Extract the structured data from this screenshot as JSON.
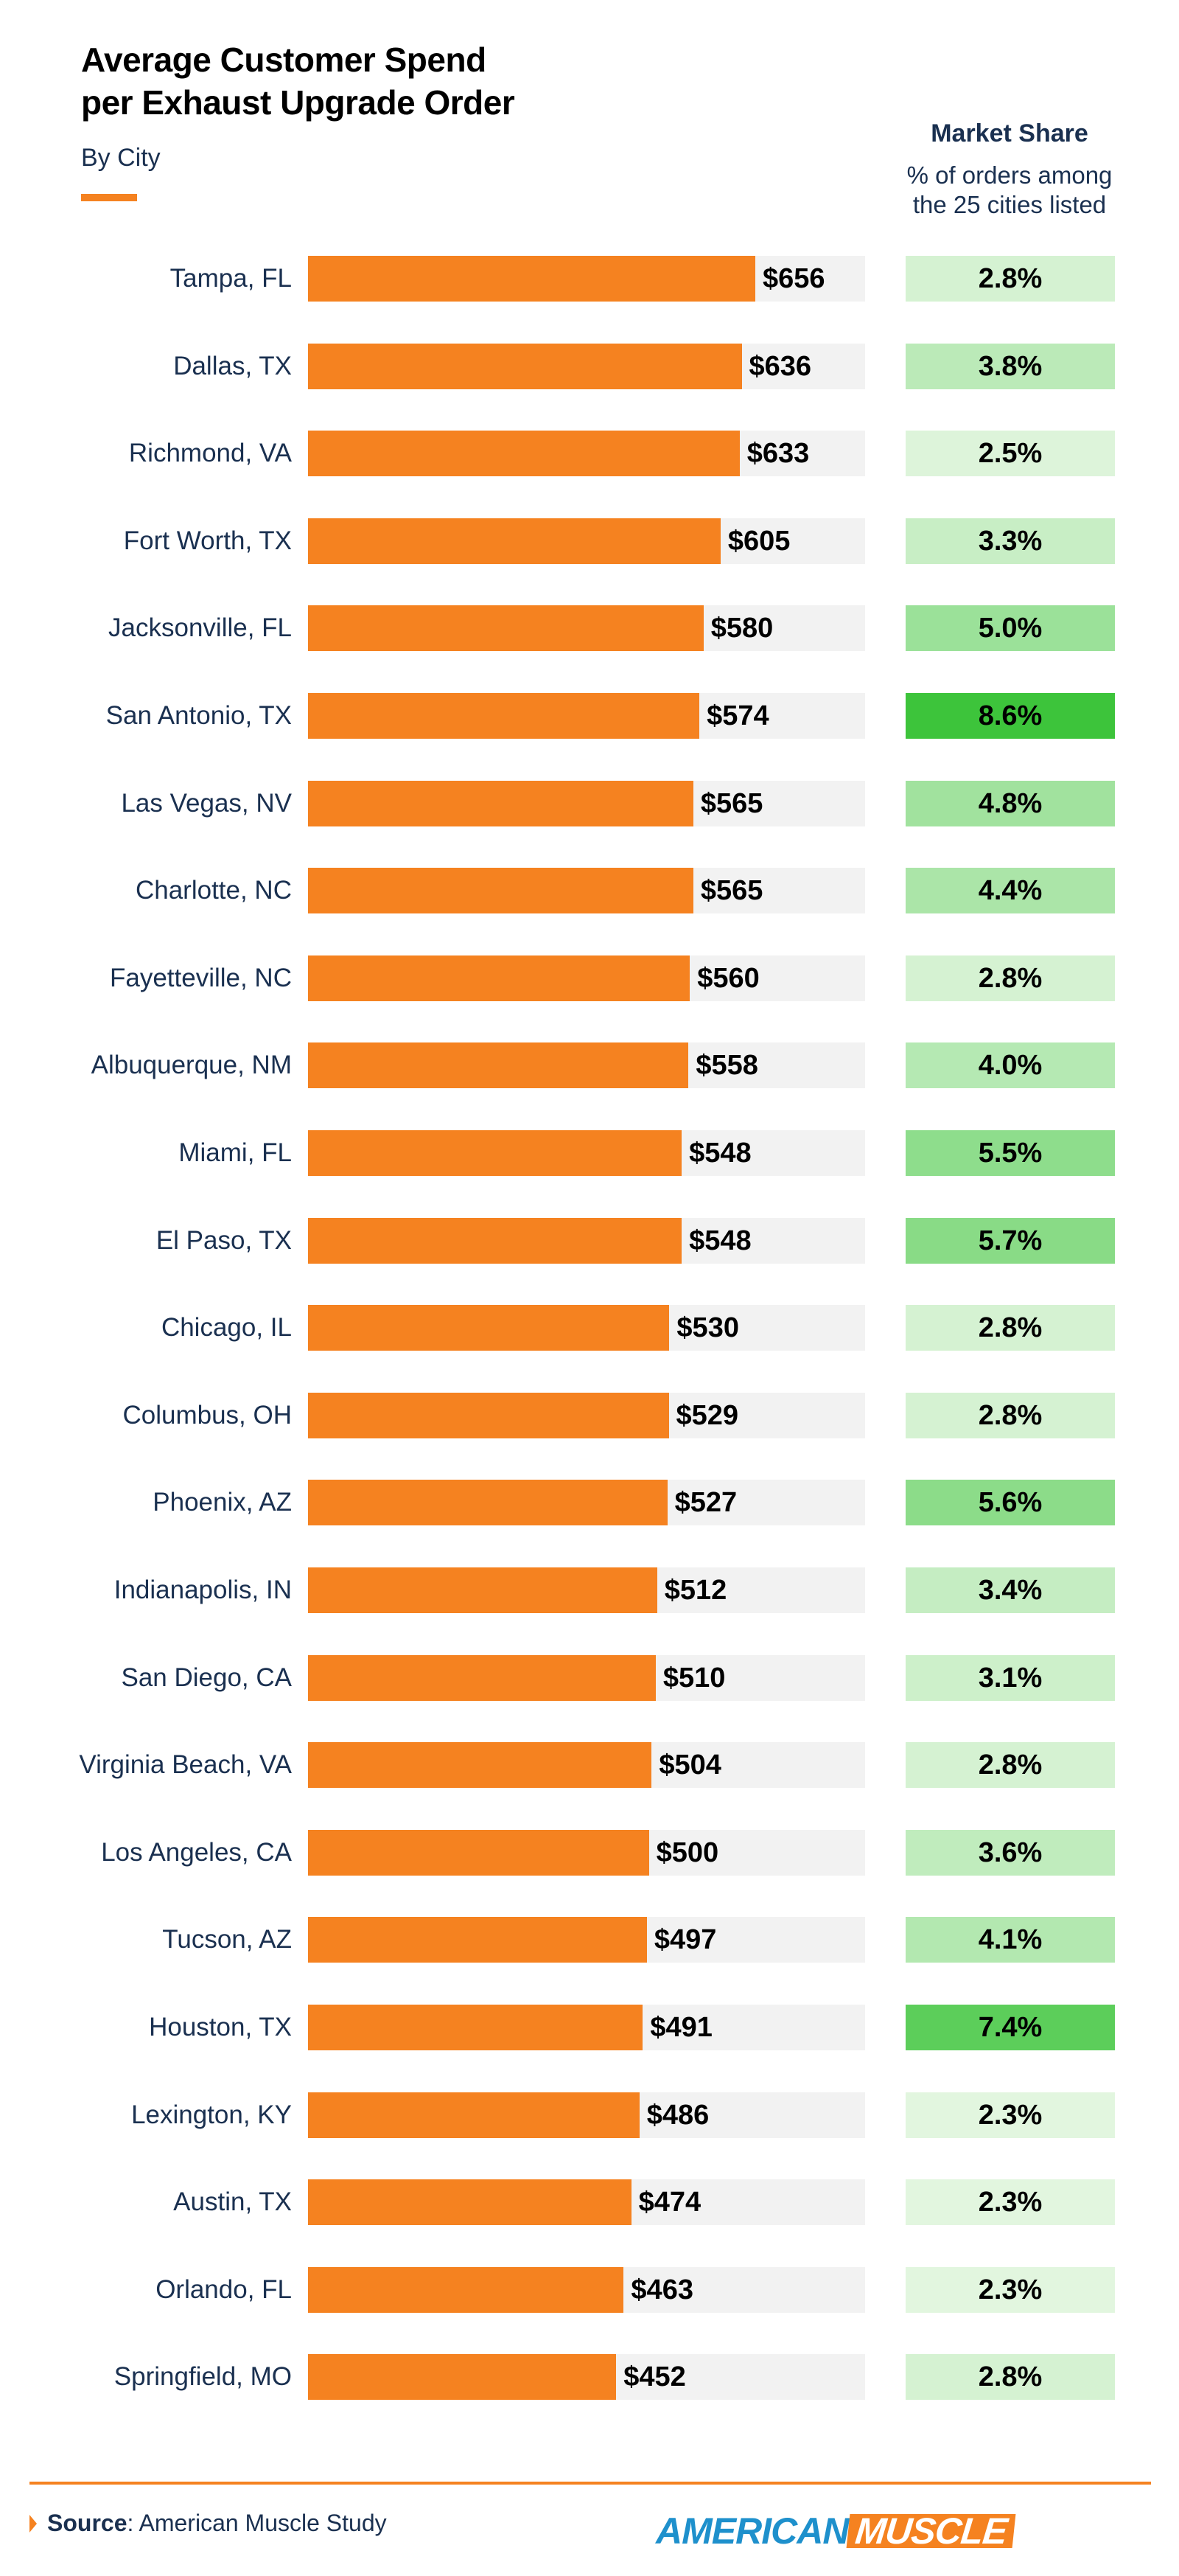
{
  "title_line1": "Average Customer Spend",
  "title_line2": "per Exhaust Upgrade Order",
  "subtitle": "By City",
  "market_share_header": {
    "title": "Market Share",
    "line1": "% of orders among",
    "line2": "the 25 cities listed"
  },
  "colors": {
    "bar": "#f58220",
    "track": "#f2f2f2",
    "share_low": "#e2f6df",
    "share_high": "#3dc43b"
  },
  "chart_data": {
    "type": "bar",
    "orientation": "horizontal",
    "categories": [
      "Tampa, FL",
      "Dallas, TX",
      "Richmond, VA",
      "Fort Worth, TX",
      "Jacksonville, FL",
      "San Antonio, TX",
      "Las Vegas, NV",
      "Charlotte, NC",
      "Fayetteville, NC",
      "Albuquerque, NM",
      "Miami, FL",
      "El Paso, TX",
      "Chicago, IL",
      "Columbus, OH",
      "Phoenix, AZ",
      "Indianapolis, IN",
      "San Diego, CA",
      "Virginia Beach, VA",
      "Los Angeles, CA",
      "Tucson, AZ",
      "Houston, TX",
      "Lexington, KY",
      "Austin, TX",
      "Orlando, FL",
      "Springfield, MO"
    ],
    "values": [
      656,
      636,
      633,
      605,
      580,
      574,
      565,
      565,
      560,
      558,
      548,
      548,
      530,
      529,
      527,
      512,
      510,
      504,
      500,
      497,
      491,
      486,
      474,
      463,
      452
    ],
    "value_labels": [
      "$656",
      "$636",
      "$633",
      "$605",
      "$580",
      "$574",
      "$565",
      "$565",
      "$560",
      "$558",
      "$548",
      "$548",
      "$530",
      "$529",
      "$527",
      "$512",
      "$510",
      "$504",
      "$500",
      "$497",
      "$491",
      "$486",
      "$474",
      "$463",
      "$452"
    ],
    "market_share": [
      2.8,
      3.8,
      2.5,
      3.3,
      5.0,
      8.6,
      4.8,
      4.4,
      2.8,
      4.0,
      5.5,
      5.7,
      2.8,
      2.8,
      5.6,
      3.4,
      3.1,
      2.8,
      3.6,
      4.1,
      7.4,
      2.3,
      2.3,
      2.3,
      2.8
    ],
    "market_share_labels": [
      "2.8%",
      "3.8%",
      "2.5%",
      "3.3%",
      "5.0%",
      "8.6%",
      "4.8%",
      "4.4%",
      "2.8%",
      "4.0%",
      "5.5%",
      "5.7%",
      "2.8%",
      "2.8%",
      "5.6%",
      "3.4%",
      "3.1%",
      "2.8%",
      "3.6%",
      "4.1%",
      "7.4%",
      "2.3%",
      "2.3%",
      "2.3%",
      "2.8%"
    ],
    "xlim": [
      0,
      817
    ],
    "grid": false
  },
  "footer": {
    "source_label": "Source",
    "source_text": ": American Muscle Study",
    "logo_part1": "AMERICAN",
    "logo_part2": "MUSCLE"
  }
}
